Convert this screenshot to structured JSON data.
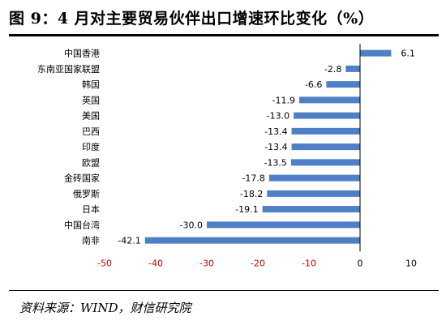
{
  "header": {
    "title": "图 9：4 月对主要贸易伙伴出口增速环比变化（%）"
  },
  "footer": {
    "source": "资料来源：WIND，财信研究院"
  },
  "chart_data": {
    "type": "bar",
    "orientation": "horizontal",
    "title": "",
    "xlabel": "",
    "ylabel": "",
    "categories": [
      "中国香港",
      "东南亚国家联盟",
      "韩国",
      "英国",
      "美国",
      "巴西",
      "印度",
      "欧盟",
      "金砖国家",
      "俄罗斯",
      "日本",
      "中国台湾",
      "南非"
    ],
    "values": [
      6.1,
      -2.8,
      -6.6,
      -11.9,
      -13.0,
      -13.4,
      -13.4,
      -13.5,
      -17.8,
      -18.2,
      -19.1,
      -30.0,
      -42.1
    ],
    "value_labels": [
      "6.1",
      "-2.8",
      "-6.6",
      "-11.9",
      "-13.0",
      "-13.4",
      "-13.4",
      "-13.5",
      "-17.8",
      "-18.2",
      "-19.1",
      "-30.0",
      "-42.1"
    ],
    "xlim": [
      -50,
      10
    ],
    "xticks": [
      -50,
      -40,
      -30,
      -20,
      -10,
      0,
      10
    ],
    "xtick_labels": [
      "-50",
      "-40",
      "-30",
      "-20",
      "-10",
      "0",
      "10"
    ],
    "grid": false,
    "legend": "none",
    "bar_color": "#4F7FC4",
    "tick_label_color": "#C00000"
  }
}
